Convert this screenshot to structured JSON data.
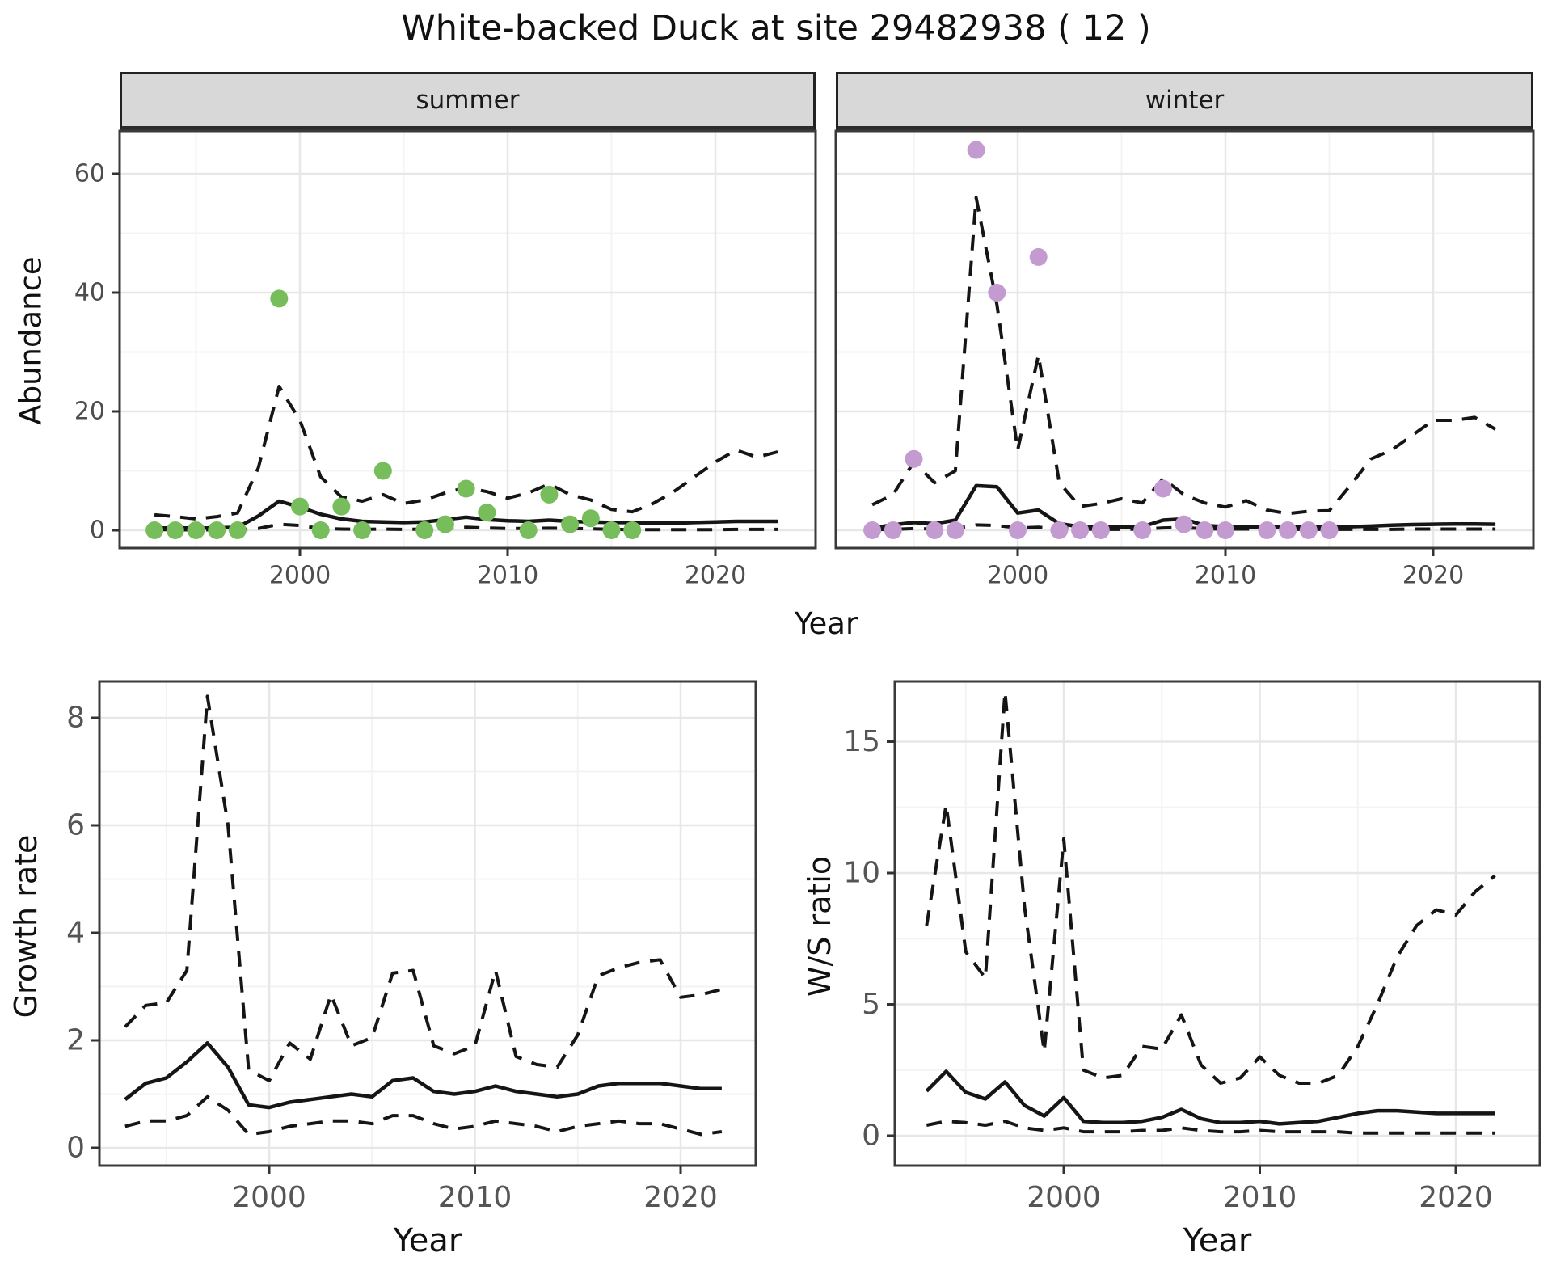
{
  "title": "White-backed Duck at site 29482938 ( 12 )",
  "colors": {
    "summer_point": "#77BD5B",
    "winter_point": "#C39BD1",
    "line": "#151515",
    "grid_major": "#e7e7e7",
    "grid_minor": "#f3f3f3",
    "strip_bg": "#d8d8d8",
    "panel_border": "#3a3a3a",
    "tick_text": "#4d4d4d"
  },
  "chart_data": [
    {
      "id": "abundance-summer",
      "type": "line",
      "facet": "summer",
      "xlabel": "Year",
      "ylabel": "Abundance",
      "legend_position": "none",
      "grid": true,
      "xticks": [
        2000,
        2010,
        2020
      ],
      "yticks": [
        0,
        20,
        40,
        60
      ],
      "xlim": [
        1991.3,
        2024.9
      ],
      "ylim": [
        -3,
        67.2
      ],
      "years": [
        1993,
        1994,
        1995,
        1996,
        1997,
        1998,
        1999,
        2000,
        2001,
        2002,
        2003,
        2004,
        2005,
        2006,
        2007,
        2008,
        2009,
        2010,
        2011,
        2012,
        2013,
        2014,
        2015,
        2016,
        2017,
        2018,
        2019,
        2020,
        2021,
        2022,
        2023
      ],
      "series": [
        {
          "name": "upper_ci",
          "style": "dashed",
          "values": [
            2.6,
            2.3,
            1.9,
            2.3,
            2.9,
            10.5,
            24.2,
            18.5,
            9,
            5.6,
            4.9,
            6,
            4.5,
            5.1,
            6.3,
            7.2,
            6.5,
            5.4,
            6.3,
            7.8,
            6,
            5.1,
            3.5,
            3.1,
            4.5,
            6.5,
            9,
            11.5,
            13.5,
            12.3,
            13.2
          ]
        },
        {
          "name": "median",
          "style": "solid",
          "values": [
            0.35,
            0.4,
            0.35,
            0.4,
            0.5,
            2.4,
            4.9,
            3.9,
            2.7,
            1.9,
            1.5,
            1.4,
            1.3,
            1.4,
            1.8,
            2.2,
            1.8,
            1.6,
            1.5,
            1.7,
            1.5,
            1.4,
            1.3,
            1.3,
            1.2,
            1.2,
            1.3,
            1.4,
            1.5,
            1.5,
            1.5
          ]
        },
        {
          "name": "lower_ci",
          "style": "dashed",
          "values": [
            0.1,
            0.1,
            0.05,
            0.1,
            0.1,
            0.3,
            1,
            0.8,
            0.3,
            0.2,
            0.15,
            0.2,
            0.15,
            0.2,
            0.3,
            0.5,
            0.4,
            0.3,
            0.3,
            0.35,
            0.3,
            0.25,
            0.15,
            0.1,
            0.1,
            0.1,
            0.1,
            0.1,
            0.15,
            0.15,
            0.15
          ]
        }
      ],
      "observations": {
        "x": [
          1993,
          1994,
          1995,
          1996,
          1997,
          1999,
          2000,
          2001,
          2002,
          2003,
          2004,
          2006,
          2007,
          2008,
          2009,
          2011,
          2012,
          2013,
          2014,
          2015,
          2016
        ],
        "y": [
          0,
          0,
          0,
          0,
          0,
          39,
          4,
          0,
          4,
          0,
          10,
          0,
          1,
          7,
          3,
          0,
          6,
          1,
          2,
          0,
          0
        ]
      }
    },
    {
      "id": "abundance-winter",
      "type": "line",
      "facet": "winter",
      "xlabel": "Year",
      "ylabel": "Abundance",
      "legend_position": "none",
      "grid": true,
      "xticks": [
        2000,
        2010,
        2020
      ],
      "yticks": [
        0,
        20,
        40,
        60
      ],
      "xlim": [
        1991.3,
        2024.9
      ],
      "ylim": [
        -3,
        67.2
      ],
      "years": [
        1993,
        1994,
        1995,
        1996,
        1997,
        1998,
        1999,
        2000,
        2001,
        2002,
        2003,
        2004,
        2005,
        2006,
        2007,
        2008,
        2009,
        2010,
        2011,
        2012,
        2013,
        2014,
        2015,
        2016,
        2017,
        2018,
        2019,
        2020,
        2021,
        2022,
        2023
      ],
      "series": [
        {
          "name": "upper_ci",
          "style": "dashed",
          "values": [
            4.3,
            6,
            11.5,
            8,
            10,
            56,
            38,
            13.5,
            29.5,
            8,
            4,
            4.5,
            5.3,
            4.6,
            8.7,
            6,
            4.6,
            3.9,
            5,
            3.4,
            2.8,
            3.2,
            3.3,
            7.5,
            12,
            13.5,
            16,
            18.5,
            18.5,
            19,
            17
          ]
        },
        {
          "name": "median",
          "style": "solid",
          "values": [
            0.4,
            0.9,
            1.3,
            1.1,
            1.7,
            7.5,
            7.3,
            2.9,
            3.4,
            1.1,
            0.6,
            0.55,
            0.5,
            0.6,
            1.7,
            1.9,
            0.8,
            0.6,
            0.6,
            0.55,
            0.5,
            0.5,
            0.5,
            0.6,
            0.7,
            0.85,
            0.95,
            1,
            1.05,
            1.05,
            1
          ]
        },
        {
          "name": "lower_ci",
          "style": "dashed",
          "values": [
            0.1,
            0.15,
            0.3,
            0.2,
            0.3,
            0.9,
            0.8,
            0.4,
            0.5,
            0.3,
            0.2,
            0.15,
            0.15,
            0.2,
            0.4,
            0.45,
            0.25,
            0.2,
            0.2,
            0.15,
            0.15,
            0.15,
            0.15,
            0.15,
            0.15,
            0.15,
            0.2,
            0.2,
            0.2,
            0.2,
            0.2
          ]
        }
      ],
      "observations": {
        "x": [
          1993,
          1994,
          1995,
          1996,
          1997,
          1998,
          1999,
          2000,
          2001,
          2002,
          2003,
          2004,
          2006,
          2007,
          2008,
          2009,
          2010,
          2012,
          2013,
          2014,
          2015
        ],
        "y": [
          0,
          0,
          12,
          0,
          0,
          64,
          40,
          0,
          46,
          0,
          0,
          0,
          0,
          7,
          1,
          0,
          0,
          0,
          0,
          0,
          0
        ]
      }
    },
    {
      "id": "growth-rate",
      "type": "line",
      "facet": null,
      "xlabel": "Year",
      "ylabel": "Growth rate",
      "legend_position": "none",
      "grid": true,
      "xticks": [
        2000,
        2010,
        2020
      ],
      "yticks": [
        0,
        2,
        4,
        6,
        8
      ],
      "xlim": [
        1991.7,
        2024.3
      ],
      "ylim": [
        -0.33,
        8.68
      ],
      "years": [
        1993,
        1994,
        1995,
        1996,
        1997,
        1998,
        1999,
        2000,
        2001,
        2002,
        2003,
        2004,
        2005,
        2006,
        2007,
        2008,
        2009,
        2010,
        2011,
        2012,
        2013,
        2014,
        2015,
        2016,
        2017,
        2018,
        2019,
        2020,
        2021,
        2022
      ],
      "series": [
        {
          "name": "upper_ci",
          "style": "dashed",
          "values": [
            2.25,
            2.65,
            2.7,
            3.3,
            8.4,
            6,
            1.45,
            1.25,
            1.95,
            1.65,
            2.85,
            1.9,
            2.05,
            3.25,
            3.3,
            1.9,
            1.75,
            1.9,
            3.3,
            1.7,
            1.55,
            1.5,
            2.1,
            3.2,
            3.35,
            3.45,
            3.5,
            2.8,
            2.85,
            2.95
          ]
        },
        {
          "name": "median",
          "style": "solid",
          "values": [
            0.9,
            1.2,
            1.3,
            1.6,
            1.95,
            1.5,
            0.8,
            0.75,
            0.85,
            0.9,
            0.95,
            1,
            0.95,
            1.25,
            1.3,
            1.05,
            1,
            1.05,
            1.15,
            1.05,
            1,
            0.95,
            1,
            1.15,
            1.2,
            1.2,
            1.2,
            1.15,
            1.1,
            1.1
          ]
        },
        {
          "name": "lower_ci",
          "style": "dashed",
          "values": [
            0.4,
            0.5,
            0.5,
            0.6,
            0.95,
            0.7,
            0.25,
            0.3,
            0.4,
            0.45,
            0.5,
            0.5,
            0.45,
            0.6,
            0.6,
            0.45,
            0.35,
            0.4,
            0.5,
            0.45,
            0.4,
            0.3,
            0.4,
            0.45,
            0.5,
            0.45,
            0.45,
            0.35,
            0.25,
            0.3
          ]
        }
      ],
      "observations": {
        "x": [],
        "y": []
      }
    },
    {
      "id": "ws-ratio",
      "type": "line",
      "facet": null,
      "xlabel": "Year",
      "ylabel": "W/S ratio",
      "legend_position": "none",
      "grid": true,
      "xticks": [
        2000,
        2010,
        2020
      ],
      "yticks": [
        0,
        5,
        10,
        15
      ],
      "xlim": [
        1991.7,
        2024.4
      ],
      "ylim": [
        -1.14,
        17.3
      ],
      "years": [
        1993,
        1994,
        1995,
        1996,
        1997,
        1998,
        1999,
        2000,
        2001,
        2002,
        2003,
        2004,
        2005,
        2006,
        2007,
        2008,
        2009,
        2010,
        2011,
        2012,
        2013,
        2014,
        2015,
        2016,
        2017,
        2018,
        2019,
        2020,
        2021,
        2022
      ],
      "series": [
        {
          "name": "upper_ci",
          "style": "dashed",
          "values": [
            8,
            12.6,
            7,
            6,
            16.9,
            8.7,
            3.2,
            11.3,
            2.5,
            2.2,
            2.3,
            3.4,
            3.3,
            4.6,
            2.7,
            2,
            2.2,
            3,
            2.3,
            2,
            2,
            2.3,
            3.4,
            5,
            6.8,
            8,
            8.6,
            8.4,
            9.3,
            9.9
          ]
        },
        {
          "name": "median",
          "style": "solid",
          "values": [
            1.7,
            2.45,
            1.65,
            1.4,
            2.05,
            1.15,
            0.75,
            1.45,
            0.55,
            0.5,
            0.5,
            0.55,
            0.7,
            1,
            0.65,
            0.5,
            0.5,
            0.55,
            0.45,
            0.5,
            0.55,
            0.7,
            0.85,
            0.95,
            0.95,
            0.9,
            0.85,
            0.85,
            0.85,
            0.85
          ]
        },
        {
          "name": "lower_ci",
          "style": "dashed",
          "values": [
            0.4,
            0.55,
            0.5,
            0.4,
            0.55,
            0.3,
            0.2,
            0.3,
            0.15,
            0.15,
            0.15,
            0.2,
            0.2,
            0.3,
            0.2,
            0.15,
            0.15,
            0.2,
            0.15,
            0.15,
            0.15,
            0.15,
            0.1,
            0.1,
            0.1,
            0.1,
            0.1,
            0.1,
            0.1,
            0.1
          ]
        }
      ],
      "observations": {
        "x": [],
        "y": []
      }
    }
  ]
}
